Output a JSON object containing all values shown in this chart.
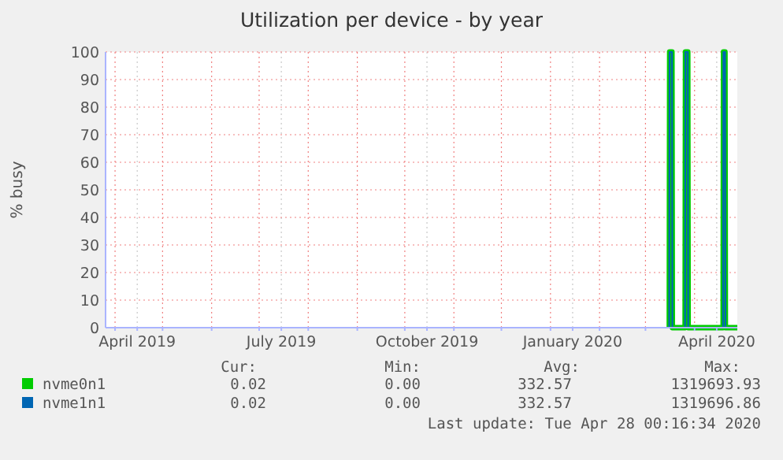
{
  "chart_data": {
    "type": "line",
    "title": "Utilization per device - by year",
    "ylabel": "% busy",
    "xlim": [
      "2019-03-26",
      "2020-04-28"
    ],
    "xticks": [
      {
        "value": "2019-04-01",
        "label": null
      },
      {
        "value": "2019-04-15",
        "label": "April 2019"
      },
      {
        "value": "2019-05-01",
        "label": null
      },
      {
        "value": "2019-06-01",
        "label": null
      },
      {
        "value": "2019-07-01",
        "label": null
      },
      {
        "value": "2019-07-15",
        "label": "July 2019"
      },
      {
        "value": "2019-08-01",
        "label": null
      },
      {
        "value": "2019-09-01",
        "label": null
      },
      {
        "value": "2019-10-01",
        "label": null
      },
      {
        "value": "2019-10-15",
        "label": "October 2019"
      },
      {
        "value": "2019-11-01",
        "label": null
      },
      {
        "value": "2019-12-01",
        "label": null
      },
      {
        "value": "2020-01-01",
        "label": null
      },
      {
        "value": "2020-01-15",
        "label": "January 2020"
      },
      {
        "value": "2020-02-01",
        "label": null
      },
      {
        "value": "2020-03-01",
        "label": null
      },
      {
        "value": "2020-04-01",
        "label": null
      },
      {
        "value": "2020-04-15",
        "label": "April 2020"
      }
    ],
    "ylim": [
      0,
      100
    ],
    "yticks": [
      0,
      10,
      20,
      30,
      40,
      50,
      60,
      70,
      80,
      90,
      100
    ],
    "x": [
      "2020-03-16T00:00",
      "2020-03-16T06:00",
      "2020-03-17T18:00",
      "2020-03-18T00:00",
      "2020-03-26T00:00",
      "2020-03-26T06:00",
      "2020-03-27T18:00",
      "2020-03-28T00:00",
      "2020-04-19T00:00",
      "2020-04-19T06:00",
      "2020-04-20T06:00",
      "2020-04-20T12:00",
      "2020-04-28T00:00"
    ],
    "series": [
      {
        "name": "nvme0n1",
        "color": "#00cc00",
        "values": [
          0,
          100,
          100,
          0,
          0,
          100,
          100,
          0,
          0,
          100,
          100,
          0,
          0
        ]
      },
      {
        "name": "nvme1n1",
        "color": "#0066b3",
        "values": [
          0,
          100,
          100,
          0,
          0,
          100,
          100,
          0,
          0,
          100,
          100,
          0,
          0
        ]
      }
    ],
    "grid": true,
    "legend": "bottom",
    "line_style": "solid",
    "annotations": [
      "Cur:",
      "Min:",
      "Avg:",
      "Max:",
      "0.02",
      "0.00",
      "332.57",
      "1319693.93",
      "0.02",
      "0.00",
      "332.57",
      "1319696.86",
      "Last update: Tue Apr 28 00:16:34 2020"
    ]
  }
}
